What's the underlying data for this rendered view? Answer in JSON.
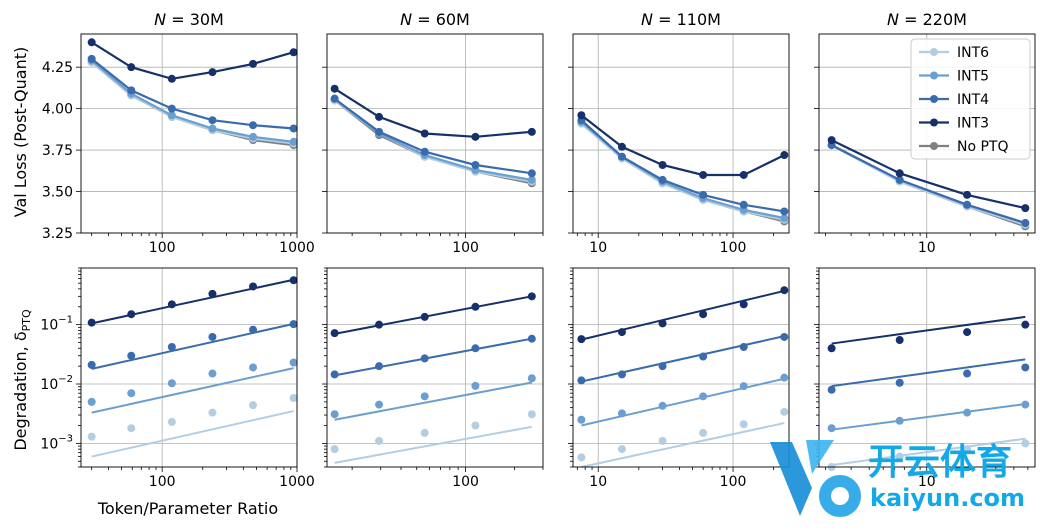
{
  "figure": {
    "shared_xlabel": "Token/Parameter Ratio",
    "top_ylabel": "Val Loss (Post-Quant)",
    "bottom_ylabel_main": "Degradation, δ",
    "bottom_ylabel_sub": "PTQ"
  },
  "legend": [
    {
      "name": "INT6",
      "color": "#b3cde3"
    },
    {
      "name": "INT5",
      "color": "#6b9fcf"
    },
    {
      "name": "INT4",
      "color": "#3a6bad"
    },
    {
      "name": "INT3",
      "color": "#16306a"
    },
    {
      "name": "No PTQ",
      "color": "#808080"
    }
  ],
  "watermark": {
    "brand": "开云体育",
    "domain": "kaiyun.com"
  },
  "chart_data": [
    {
      "type": "line",
      "title": "N = 30M",
      "title_prefix": "N",
      "title_value": "= 30M",
      "xscale": "log",
      "xlim": [
        25,
        1000
      ],
      "x_ticks": [
        100,
        1000
      ],
      "x_ticklabels": [
        "100",
        "1000"
      ],
      "ylim": [
        3.25,
        4.45
      ],
      "y_ticks": [
        3.25,
        3.5,
        3.75,
        4.0,
        4.25
      ],
      "y_ticklabels": [
        "3.25",
        "3.50",
        "3.75",
        "4.00",
        "4.25"
      ],
      "x": [
        30,
        59,
        118,
        236,
        472,
        944
      ],
      "series": [
        {
          "name": "INT3",
          "values": [
            4.4,
            4.25,
            4.18,
            4.22,
            4.27,
            4.34
          ]
        },
        {
          "name": "INT4",
          "values": [
            4.3,
            4.11,
            4.0,
            3.93,
            3.9,
            3.88
          ]
        },
        {
          "name": "INT5",
          "values": [
            4.29,
            4.09,
            3.96,
            3.88,
            3.83,
            3.8
          ]
        },
        {
          "name": "INT6",
          "values": [
            4.28,
            4.08,
            3.95,
            3.87,
            3.82,
            3.79
          ]
        },
        {
          "name": "No PTQ",
          "values": [
            4.28,
            4.08,
            3.95,
            3.87,
            3.81,
            3.78
          ]
        }
      ]
    },
    {
      "type": "line",
      "title": "N = 60M",
      "title_prefix": "N",
      "title_value": "= 60M",
      "xscale": "log",
      "xlim": [
        14,
        300
      ],
      "x_ticks": [
        100
      ],
      "x_ticklabels": [
        "100"
      ],
      "ylim": [
        3.25,
        4.45
      ],
      "y_ticks": [
        3.25,
        3.5,
        3.75,
        4.0,
        4.25
      ],
      "y_ticklabels": [],
      "x": [
        15.6,
        29.3,
        56,
        115,
        256
      ],
      "series": [
        {
          "name": "INT3",
          "values": [
            4.12,
            3.95,
            3.85,
            3.83,
            3.86
          ]
        },
        {
          "name": "INT4",
          "values": [
            4.06,
            3.86,
            3.74,
            3.66,
            3.61
          ]
        },
        {
          "name": "INT5",
          "values": [
            4.06,
            3.85,
            3.72,
            3.63,
            3.57
          ]
        },
        {
          "name": "INT6",
          "values": [
            4.05,
            3.85,
            3.71,
            3.62,
            3.56
          ]
        },
        {
          "name": "No PTQ",
          "values": [
            4.05,
            3.84,
            3.71,
            3.62,
            3.55
          ]
        }
      ]
    },
    {
      "type": "line",
      "title": "N = 110M",
      "title_prefix": "N",
      "title_value": "= 110M",
      "xscale": "log",
      "xlim": [
        6.5,
        260
      ],
      "x_ticks": [
        10,
        100
      ],
      "x_ticklabels": [
        "10",
        "100"
      ],
      "ylim": [
        3.25,
        4.45
      ],
      "y_ticks": [
        3.25,
        3.5,
        3.75,
        4.0,
        4.25
      ],
      "y_ticklabels": [],
      "x": [
        7.5,
        15,
        30,
        60,
        120,
        240
      ],
      "series": [
        {
          "name": "INT3",
          "values": [
            3.96,
            3.77,
            3.66,
            3.6,
            3.6,
            3.72
          ]
        },
        {
          "name": "INT4",
          "values": [
            3.93,
            3.71,
            3.57,
            3.48,
            3.42,
            3.38
          ]
        },
        {
          "name": "INT5",
          "values": [
            3.92,
            3.71,
            3.56,
            3.46,
            3.39,
            3.34
          ]
        },
        {
          "name": "INT6",
          "values": [
            3.91,
            3.7,
            3.55,
            3.45,
            3.38,
            3.33
          ]
        },
        {
          "name": "No PTQ",
          "values": [
            3.91,
            3.7,
            3.55,
            3.45,
            3.38,
            3.32
          ]
        }
      ]
    },
    {
      "type": "line",
      "title": "N = 220M",
      "title_prefix": "N",
      "title_value": "= 220M",
      "xscale": "log",
      "xlim": [
        1.8,
        56
      ],
      "x_ticks": [
        10
      ],
      "x_ticklabels": [
        "10"
      ],
      "ylim": [
        3.25,
        4.45
      ],
      "y_ticks": [
        3.25,
        3.5,
        3.75,
        4.0,
        4.25
      ],
      "y_ticklabels": [],
      "x": [
        2.2,
        6.5,
        19,
        48
      ],
      "series": [
        {
          "name": "INT3",
          "values": [
            3.81,
            3.61,
            3.48,
            3.4
          ]
        },
        {
          "name": "INT4",
          "values": [
            3.78,
            3.57,
            3.42,
            3.31
          ]
        },
        {
          "name": "INT5",
          "values": [
            3.78,
            3.57,
            3.42,
            3.31
          ]
        },
        {
          "name": "INT6",
          "values": [
            3.78,
            3.56,
            3.41,
            3.3
          ]
        },
        {
          "name": "No PTQ",
          "values": [
            3.78,
            3.56,
            3.41,
            3.29
          ]
        }
      ]
    },
    {
      "type": "scatter",
      "title": "N = 30M degradation",
      "xscale": "log",
      "yscale": "log",
      "xlim": [
        25,
        1000
      ],
      "ylim": [
        0.0004,
        0.9
      ],
      "x_ticks": [
        100,
        1000
      ],
      "x_ticklabels": [
        "100",
        "1000"
      ],
      "y_ticks": [
        0.001,
        0.01,
        0.1
      ],
      "x": [
        30,
        59,
        118,
        236,
        472,
        944
      ],
      "series": [
        {
          "name": "INT3",
          "values": [
            0.108,
            0.15,
            0.22,
            0.33,
            0.44,
            0.56
          ],
          "fit": [
            0.105,
            0.57
          ]
        },
        {
          "name": "INT4",
          "values": [
            0.021,
            0.03,
            0.042,
            0.062,
            0.082,
            0.102
          ],
          "fit": [
            0.018,
            0.103
          ]
        },
        {
          "name": "INT5",
          "values": [
            0.005,
            0.007,
            0.0103,
            0.015,
            0.019,
            0.023
          ],
          "fit": [
            0.0033,
            0.0185
          ]
        },
        {
          "name": "INT6",
          "values": [
            0.0013,
            0.0018,
            0.0023,
            0.0033,
            0.0044,
            0.0058
          ],
          "fit": [
            0.0006,
            0.0035
          ]
        }
      ]
    },
    {
      "type": "scatter",
      "title": "N = 60M degradation",
      "xscale": "log",
      "yscale": "log",
      "xlim": [
        14,
        300
      ],
      "ylim": [
        0.0004,
        0.9
      ],
      "x_ticks": [
        100
      ],
      "x_ticklabels": [
        "100"
      ],
      "y_ticks": [
        0.001,
        0.01,
        0.1
      ],
      "x": [
        15.6,
        29.3,
        56,
        115,
        256
      ],
      "series": [
        {
          "name": "INT3",
          "values": [
            0.072,
            0.1,
            0.135,
            0.2,
            0.3
          ],
          "fit": [
            0.07,
            0.3
          ]
        },
        {
          "name": "INT4",
          "values": [
            0.0145,
            0.02,
            0.027,
            0.04,
            0.058
          ],
          "fit": [
            0.014,
            0.058
          ]
        },
        {
          "name": "INT5",
          "values": [
            0.0031,
            0.0045,
            0.0062,
            0.0093,
            0.0125
          ],
          "fit": [
            0.0025,
            0.0106
          ]
        },
        {
          "name": "INT6",
          "values": [
            0.0008,
            0.0011,
            0.0015,
            0.002,
            0.0031
          ],
          "fit": [
            0.00047,
            0.0019
          ]
        }
      ]
    },
    {
      "type": "scatter",
      "title": "N = 110M degradation",
      "xscale": "log",
      "yscale": "log",
      "xlim": [
        6.5,
        260
      ],
      "ylim": [
        0.0004,
        0.9
      ],
      "x_ticks": [
        10,
        100
      ],
      "x_ticklabels": [
        "10",
        "100"
      ],
      "y_ticks": [
        0.001,
        0.01,
        0.1
      ],
      "x": [
        7.5,
        15,
        30,
        60,
        120,
        240
      ],
      "series": [
        {
          "name": "INT3",
          "values": [
            0.057,
            0.075,
            0.105,
            0.15,
            0.22,
            0.38
          ],
          "fit": [
            0.056,
            0.37
          ]
        },
        {
          "name": "INT4",
          "values": [
            0.0115,
            0.0145,
            0.02,
            0.029,
            0.042,
            0.062
          ],
          "fit": [
            0.011,
            0.064
          ]
        },
        {
          "name": "INT5",
          "values": [
            0.0025,
            0.0032,
            0.0043,
            0.0062,
            0.0092,
            0.0128
          ],
          "fit": [
            0.002,
            0.0123
          ]
        },
        {
          "name": "INT6",
          "values": [
            0.00058,
            0.0008,
            0.0011,
            0.0015,
            0.0021,
            0.0034
          ],
          "fit": [
            0.0004,
            0.0022
          ]
        }
      ]
    },
    {
      "type": "scatter",
      "title": "N = 220M degradation",
      "xscale": "log",
      "yscale": "log",
      "xlim": [
        1.8,
        56
      ],
      "ylim": [
        0.0004,
        0.9
      ],
      "x_ticks": [
        10
      ],
      "x_ticklabels": [
        "10"
      ],
      "y_ticks": [
        0.001,
        0.01,
        0.1
      ],
      "x": [
        2.2,
        6.5,
        19,
        48
      ],
      "series": [
        {
          "name": "INT3",
          "values": [
            0.04,
            0.055,
            0.075,
            0.1
          ],
          "fit": [
            0.048,
            0.135
          ]
        },
        {
          "name": "INT4",
          "values": [
            0.008,
            0.0105,
            0.015,
            0.019
          ],
          "fit": [
            0.0092,
            0.026
          ]
        },
        {
          "name": "INT5",
          "values": [
            0.0018,
            0.0024,
            0.0033,
            0.0045
          ],
          "fit": [
            0.0017,
            0.0046
          ]
        },
        {
          "name": "INT6",
          "values": [
            0.0004,
            0.0006,
            0.0008,
            0.001
          ],
          "fit": [
            0.00043,
            0.0012
          ]
        }
      ]
    }
  ]
}
